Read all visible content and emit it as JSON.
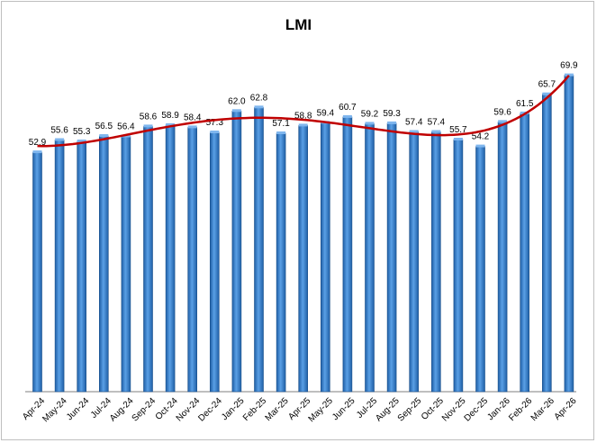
{
  "chart_data": {
    "type": "bar",
    "title": "LMI",
    "categories": [
      "Apr-24",
      "May-24",
      "Jun-24",
      "Jul-24",
      "Aug-24",
      "Sep-24",
      "Oct-24",
      "Nov-24",
      "Dec-24",
      "Jan-25",
      "Feb-25",
      "Mar-25",
      "Apr-25",
      "May-25",
      "Jun-25",
      "Jul-25",
      "Aug-25",
      "Sep-25",
      "Oct-25",
      "Nov-25",
      "Dec-25",
      "Jan-26",
      "Feb-26",
      "Mar-26",
      "Apr-26"
    ],
    "values": [
      52.9,
      55.6,
      55.3,
      56.5,
      56.4,
      58.6,
      58.9,
      58.4,
      57.3,
      62.0,
      62.8,
      57.1,
      58.8,
      59.4,
      60.7,
      59.2,
      59.3,
      57.4,
      57.4,
      55.7,
      54.2,
      59.6,
      61.5,
      65.7,
      69.9
    ],
    "value_labels": [
      "52.9",
      "55.6",
      "55.3",
      "56.5",
      "56.4",
      "58.6",
      "58.9",
      "58.4",
      "57.3",
      "62.0",
      "62.8",
      "57.1",
      "58.8",
      "59.4",
      "60.7",
      "59.2",
      "59.3",
      "57.4",
      "57.4",
      "55.7",
      "54.2",
      "59.6",
      "61.5",
      "65.7",
      "69.9"
    ],
    "ylim": [
      0,
      75
    ],
    "bar_color": "#2f7fcf",
    "trendline": {
      "type": "polynomial",
      "color": "#c00000"
    },
    "grid": false,
    "legend": "none",
    "xlabel": "",
    "ylabel": ""
  }
}
